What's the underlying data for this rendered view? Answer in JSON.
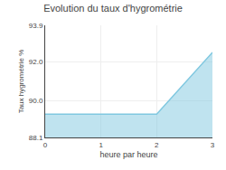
{
  "chart_data": {
    "type": "area",
    "title": "Evolution du taux d'hygrométrie",
    "xlabel": "heure par heure",
    "ylabel": "Taux hygrométrie %",
    "x": [
      0,
      2,
      3
    ],
    "values": [
      89.3,
      89.3,
      92.5
    ],
    "color": "#80c8e0",
    "xlim": [
      0,
      3
    ],
    "ylim": [
      88.1,
      93.9
    ],
    "xticks": [
      0,
      1,
      2,
      3
    ],
    "yticks": [
      88.1,
      {
        "value": 90.0,
        "label": "90.0"
      },
      {
        "value": 92.0,
        "label": "92.0"
      },
      93.9
    ],
    "grid": true
  }
}
